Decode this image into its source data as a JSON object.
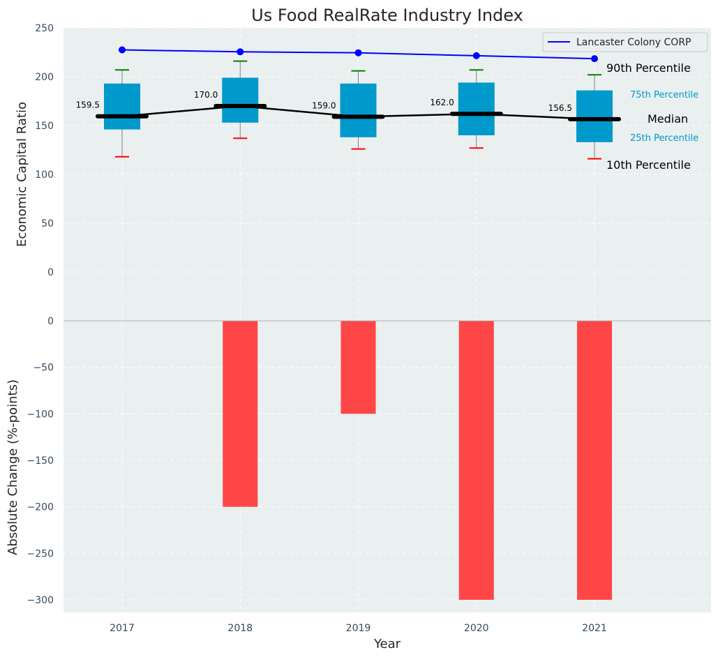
{
  "chart_data": [
    {
      "type": "box",
      "title": "Us Food RealRate Industry Index",
      "ylabel": "Economic Capital Ratio",
      "ylim": [
        0,
        250
      ],
      "yticks": [
        0,
        50,
        100,
        150,
        200,
        250
      ],
      "categories": [
        "2017",
        "2018",
        "2019",
        "2020",
        "2021"
      ],
      "percentiles": {
        "p10": [
          118,
          137,
          126,
          127,
          116
        ],
        "p25": [
          146,
          153,
          138,
          140,
          133
        ],
        "median": [
          159.5,
          170.0,
          159.0,
          162.0,
          156.5
        ],
        "p75": [
          193,
          199,
          193,
          194,
          186
        ],
        "p90": [
          207,
          216,
          206,
          207,
          202
        ]
      },
      "median_labels": [
        "159.5",
        "170.0",
        "159.0",
        "162.0",
        "156.5"
      ],
      "series": [
        {
          "name": "Lancaster Colony CORP",
          "values": [
            227.5,
            225.5,
            224.5,
            221.5,
            218.5
          ],
          "color": "#0000ff"
        }
      ],
      "legend_position": "top-right",
      "annotations": [
        "90th Percentile",
        "75th Percentile",
        "Median",
        "25th Percentile",
        "10th Percentile"
      ],
      "grid": true,
      "colors": {
        "box": "#0099cc",
        "median": "#000000",
        "p90_whisker": "#008000",
        "p10_whisker": "#ff0000",
        "background": "#eaeff0"
      }
    },
    {
      "type": "bar",
      "ylabel": "Absolute Change (%-points)",
      "xlabel": "Year",
      "ylim": [
        -310,
        0
      ],
      "yticks": [
        0,
        -50,
        -100,
        -150,
        -200,
        -250,
        -300
      ],
      "ytick_labels": [
        "0",
        "−50",
        "−100",
        "−150",
        "−200",
        "−250",
        "−300"
      ],
      "categories": [
        "2017",
        "2018",
        "2019",
        "2020",
        "2021"
      ],
      "values": [
        0,
        -200,
        -100,
        -300,
        -300
      ],
      "grid": true,
      "colors": {
        "bar": "#ff3c3c"
      }
    }
  ]
}
